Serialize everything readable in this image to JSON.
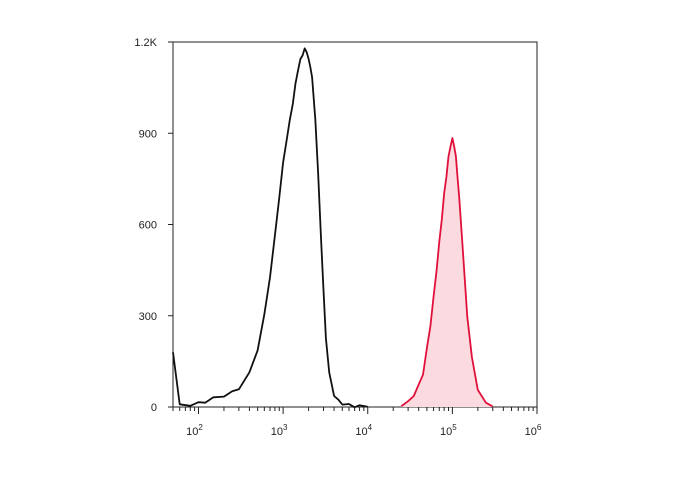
{
  "chart_data": {
    "type": "line",
    "title": "",
    "xlabel": "",
    "ylabel": "",
    "x_scale": "log",
    "xlim": [
      50,
      1000000
    ],
    "ylim": [
      0,
      1200
    ],
    "grid": false,
    "legend": "none",
    "x_tick_labels": [
      {
        "value": 100,
        "base": "10",
        "exp": "2"
      },
      {
        "value": 1000,
        "base": "10",
        "exp": "3"
      },
      {
        "value": 10000,
        "base": "10",
        "exp": "4"
      },
      {
        "value": 100000,
        "base": "10",
        "exp": "5"
      },
      {
        "value": 1000000,
        "base": "10",
        "exp": "6"
      }
    ],
    "y_ticks": [
      {
        "value": 0,
        "label": "0"
      },
      {
        "value": 300,
        "label": "300"
      },
      {
        "value": 600,
        "label": "600"
      },
      {
        "value": 900,
        "label": "900"
      },
      {
        "value": 1200,
        "label": "1.2K"
      }
    ],
    "series": [
      {
        "color": "#111111",
        "fill": "none",
        "x": [
          50,
          60,
          80,
          100,
          120,
          150,
          200,
          250,
          300,
          400,
          500,
          600,
          700,
          800,
          900,
          1000,
          1100,
          1200,
          1300,
          1400,
          1500,
          1600,
          1700,
          1800,
          1900,
          2000,
          2100,
          2200,
          2400,
          2600,
          2800,
          3000,
          3200,
          3500,
          4000,
          4500,
          5000,
          6000,
          7000,
          8000,
          10000
        ],
        "y": [
          180,
          5,
          8,
          12,
          18,
          28,
          38,
          48,
          62,
          110,
          190,
          300,
          430,
          560,
          690,
          800,
          880,
          940,
          1000,
          1060,
          1110,
          1140,
          1160,
          1175,
          1170,
          1140,
          1120,
          1080,
          950,
          760,
          560,
          380,
          230,
          110,
          40,
          20,
          12,
          6,
          3,
          2,
          1
        ]
      },
      {
        "color": "#e0103a",
        "fill": "#fbdbe0",
        "x": [
          25000,
          30000,
          35000,
          40000,
          45000,
          50000,
          55000,
          60000,
          65000,
          70000,
          75000,
          80000,
          85000,
          90000,
          95000,
          100000,
          105000,
          110000,
          115000,
          120000,
          130000,
          140000,
          150000,
          170000,
          200000,
          250000,
          300000
        ],
        "y": [
          3,
          15,
          40,
          70,
          110,
          190,
          270,
          360,
          450,
          540,
          620,
          700,
          760,
          820,
          860,
          880,
          860,
          820,
          760,
          690,
          560,
          420,
          300,
          160,
          60,
          10,
          2
        ]
      }
    ]
  }
}
